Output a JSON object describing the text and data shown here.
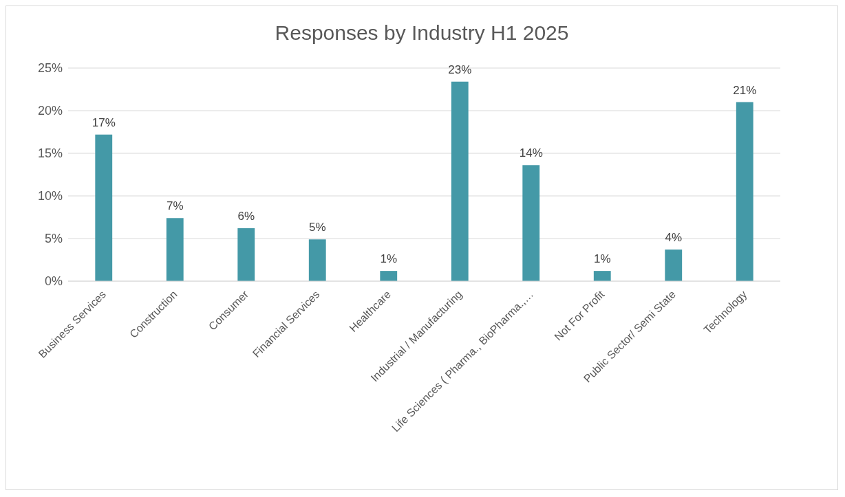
{
  "chart_data": {
    "type": "bar",
    "title": "Responses by Industry H1 2025",
    "categories": [
      "Business Services",
      "Construction",
      "Consumer",
      "Financial Services",
      "Healthcare",
      "Industrial / Manufacturing",
      "Life Sciences ( Pharma., BioPharma.,…",
      "Not For Profit",
      "Public Sector/ Semi State",
      "Technology"
    ],
    "values": [
      17.2,
      7.4,
      6.2,
      4.9,
      1.2,
      23.4,
      13.6,
      1.2,
      3.7,
      21.0
    ],
    "value_labels": [
      "17%",
      "7%",
      "6%",
      "5%",
      "1%",
      "23%",
      "14%",
      "1%",
      "4%",
      "21%"
    ],
    "color": "#4499a7",
    "ylim": [
      0,
      25
    ],
    "yticks": [
      {
        "value": 0,
        "label": "0%"
      },
      {
        "value": 5,
        "label": "5%"
      },
      {
        "value": 10,
        "label": "10%"
      },
      {
        "value": 15,
        "label": "15%"
      },
      {
        "value": 20,
        "label": "20%"
      },
      {
        "value": 25,
        "label": "25%"
      }
    ],
    "grid": "y"
  }
}
